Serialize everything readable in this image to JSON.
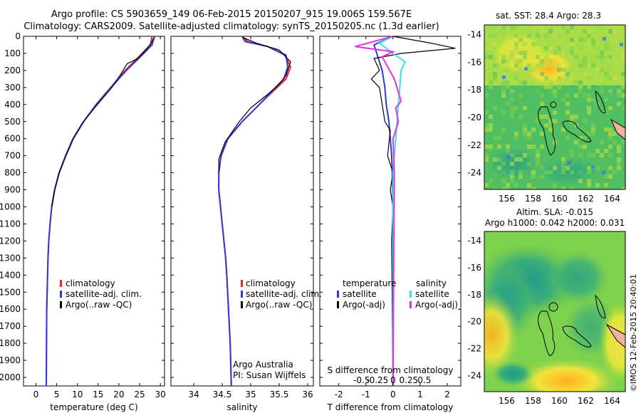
{
  "header": {
    "line1": "Argo profile: CS 5903659_149 06-Feb-2015 20150207_915 19.006S 159.567E",
    "line2": "Climatology: CARS2009. Satellite-adjusted climatology: synTS_20150205.nc (1.3d earlier)"
  },
  "colors": {
    "climatology": "#e8262a",
    "satellite": "#2a3bd6",
    "argo": "#000000",
    "sat_salinity": "#35e0ea",
    "argo_salinity": "#e832e0"
  },
  "chart_data": [
    {
      "type": "line",
      "panel": "temperature",
      "xlabel": "temperature (deg C)",
      "ylabel": "",
      "xlim": [
        -3,
        31
      ],
      "ylim": [
        2050,
        0
      ],
      "xticks": [
        0,
        5,
        10,
        15,
        20,
        25,
        30
      ],
      "yticks": [
        0,
        100,
        200,
        300,
        400,
        500,
        600,
        700,
        800,
        900,
        1000,
        1100,
        1200,
        1300,
        1400,
        1500,
        1600,
        1700,
        1800,
        1900,
        2000
      ],
      "legend": [
        "climatology",
        "satellite-adj. clim.",
        "Argo(..raw -QC)"
      ],
      "series": [
        {
          "name": "climatology",
          "color": "#e8262a",
          "x": [
            28.0,
            27.6,
            25.6,
            21.5,
            18.0,
            14.5,
            11.5,
            9.0,
            7.2,
            5.6,
            4.5,
            3.8,
            3.4,
            3.1,
            2.9,
            2.8,
            2.7,
            2.6,
            2.55,
            2.5
          ],
          "y": [
            0,
            50,
            100,
            200,
            300,
            400,
            500,
            600,
            700,
            800,
            900,
            1000,
            1100,
            1200,
            1300,
            1400,
            1500,
            1600,
            1800,
            2050
          ]
        },
        {
          "name": "satellite-adj. clim.",
          "color": "#2a3bd6",
          "x": [
            28.6,
            28.0,
            26.0,
            21.8,
            18.1,
            14.6,
            11.5,
            9.0,
            7.2,
            5.6,
            4.5,
            3.8,
            3.4,
            3.1,
            2.9,
            2.8,
            2.7,
            2.6,
            2.55,
            2.5
          ],
          "y": [
            0,
            50,
            100,
            200,
            300,
            400,
            500,
            600,
            700,
            800,
            900,
            1000,
            1100,
            1200,
            1300,
            1400,
            1500,
            1600,
            1800,
            2050
          ]
        },
        {
          "name": "Argo(..raw -QC)",
          "color": "#000000",
          "x": [
            28.5,
            27.8,
            26.8,
            24.6,
            22.0,
            20.5,
            18.3,
            14.8,
            11.4,
            8.9,
            7.1,
            5.6,
            4.5,
            3.8
          ],
          "y": [
            5,
            40,
            70,
            130,
            160,
            220,
            300,
            400,
            500,
            600,
            700,
            800,
            900,
            1000
          ]
        }
      ]
    },
    {
      "type": "line",
      "panel": "salinity",
      "xlabel": "salinity",
      "ylabel": "",
      "xlim": [
        33.6,
        36.1
      ],
      "ylim": [
        2050,
        0
      ],
      "xticks": [
        34,
        34.5,
        35,
        35.5,
        36
      ],
      "legend": [
        "climatology",
        "satellite-adj. clim.",
        "Argo(..raw -QC)"
      ],
      "annotation": [
        "Argo Australia",
        "PI: Susan Wijffels"
      ],
      "series": [
        {
          "name": "climatology",
          "color": "#e8262a",
          "x": [
            34.85,
            34.95,
            35.3,
            35.6,
            35.7,
            35.62,
            35.4,
            35.15,
            34.85,
            34.6,
            34.48,
            34.44,
            34.44,
            34.47,
            34.5,
            34.53,
            34.56,
            34.58,
            34.61,
            34.64,
            34.66
          ],
          "y": [
            0,
            30,
            60,
            110,
            180,
            250,
            320,
            400,
            500,
            600,
            700,
            800,
            900,
            1000,
            1100,
            1200,
            1300,
            1400,
            1600,
            1800,
            2050
          ]
        },
        {
          "name": "satellite-adj. clim.",
          "color": "#2a3bd6",
          "x": [
            34.85,
            34.9,
            35.3,
            35.62,
            35.65,
            35.58,
            35.38,
            35.15,
            34.85,
            34.6,
            34.48,
            34.44,
            34.44,
            34.47,
            34.5,
            34.53,
            34.56,
            34.58,
            34.61,
            34.64,
            34.66
          ],
          "y": [
            0,
            30,
            60,
            110,
            180,
            250,
            320,
            400,
            500,
            600,
            700,
            800,
            900,
            1000,
            1100,
            1200,
            1300,
            1400,
            1600,
            1800,
            2050
          ]
        },
        {
          "name": "Argo(..raw -QC)",
          "color": "#000000",
          "x": [
            34.85,
            35.1,
            35.5,
            35.7,
            35.62,
            35.5,
            35.3,
            35.0,
            34.8,
            34.55,
            34.44,
            34.44
          ],
          "y": [
            5,
            40,
            80,
            150,
            230,
            280,
            340,
            420,
            500,
            620,
            720,
            800
          ]
        }
      ]
    },
    {
      "type": "line",
      "panel": "difference",
      "xlabel": "T difference from climatology",
      "xlabel_top": "S difference from climatology",
      "xlim": [
        -2.7,
        2.5
      ],
      "ylim": [
        2050,
        0
      ],
      "xticks": [
        -2,
        -1,
        0,
        1,
        2
      ],
      "xticks_s": [
        -0.5,
        -0.25,
        0,
        0.25,
        0.5
      ],
      "legend_left_title": "temperature",
      "legend_right_title": "salinity",
      "legend": [
        "satellite",
        "Argo(-adj)",
        "satellite",
        "Argo(-adj)"
      ],
      "series": [
        {
          "name": "T satellite",
          "color": "#2a3bd6",
          "x": [
            0.0,
            -0.7,
            -0.6,
            -0.4,
            -0.3,
            -0.25,
            -0.15,
            -0.1,
            -0.05,
            -0.03,
            0.0,
            0.0
          ],
          "y": [
            0,
            50,
            100,
            200,
            300,
            400,
            500,
            600,
            700,
            800,
            1000,
            2050
          ]
        },
        {
          "name": "T Argo(-adj)",
          "color": "#000000",
          "x": [
            0.0,
            1.4,
            2.3,
            0.3,
            -0.7,
            -0.5,
            -0.8,
            -0.5,
            -0.4,
            -0.3,
            -0.1,
            -0.2,
            0.0,
            -0.1,
            0.0,
            -0.05,
            0.0
          ],
          "y": [
            0,
            40,
            70,
            100,
            130,
            200,
            250,
            300,
            400,
            500,
            550,
            700,
            800,
            900,
            1000,
            1200,
            2050
          ]
        },
        {
          "name": "S satellite",
          "color": "#35e0ea",
          "x": [
            0.0,
            -0.5,
            0.0,
            0.45,
            0.3,
            0.25,
            0.2,
            0.15,
            0.1,
            0.05,
            0.0,
            0.0
          ],
          "y": [
            0,
            40,
            100,
            150,
            200,
            300,
            400,
            500,
            600,
            700,
            800,
            2050
          ]
        },
        {
          "name": "S Argo(-adj)",
          "color": "#e832e0",
          "x": [
            0.0,
            -1.4,
            0.0,
            -0.4,
            0.05,
            0.3,
            0.1,
            0.2,
            0.0,
            0.05,
            0.0
          ],
          "y": [
            0,
            60,
            90,
            120,
            250,
            380,
            420,
            500,
            600,
            800,
            2050
          ]
        }
      ]
    },
    {
      "type": "heatmap",
      "panel": "sst_map",
      "title": "sat. SST: 28.4  Argo: 28.3",
      "xlim": [
        154.3,
        165.0
      ],
      "ylim": [
        -25.2,
        -13.3
      ],
      "xticks": [
        156,
        158,
        160,
        162,
        164
      ],
      "yticks": [
        -14,
        -16,
        -18,
        -20,
        -22,
        -24
      ],
      "float_position": [
        159.567,
        -19.006
      ]
    },
    {
      "type": "heatmap",
      "panel": "sla_map",
      "title_lines": [
        "Altim. SLA: -0.015",
        "Argo h1000: 0.042  h2000: 0.031"
      ],
      "xlim": [
        154.3,
        165.0
      ],
      "ylim": [
        -25.2,
        -13.3
      ],
      "xticks": [
        156,
        158,
        160,
        162,
        164
      ],
      "yticks": [
        -14,
        -16,
        -18,
        -20,
        -22,
        -24
      ],
      "float_position": [
        159.567,
        -19.006
      ]
    }
  ],
  "credit": "©IMOS 12-Feb-2015 20:40:01"
}
